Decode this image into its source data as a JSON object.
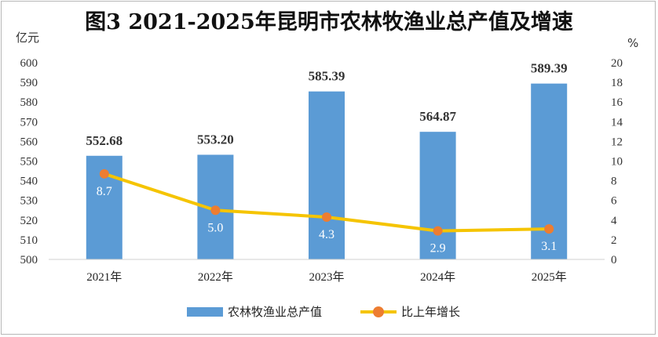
{
  "title": "图3 2021-2025年昆明市农林牧渔业总产值及增速",
  "chart_data": {
    "type": "bar",
    "categories": [
      "2021年",
      "2022年",
      "2023年",
      "2024年",
      "2025年"
    ],
    "series": [
      {
        "name": "农林牧渔业总产值",
        "type": "bar",
        "axis": "left",
        "values": [
          552.68,
          553.2,
          585.39,
          564.87,
          589.39
        ],
        "labels": [
          "552.68",
          "553.20",
          "585.39",
          "564.87",
          "589.39"
        ],
        "color": "#5b9bd5"
      },
      {
        "name": "比上年增长",
        "type": "line",
        "axis": "right",
        "values": [
          8.7,
          5.0,
          4.3,
          2.9,
          3.1
        ],
        "labels": [
          "8.7",
          "5.0",
          "4.3",
          "2.9",
          "3.1"
        ],
        "color": "#f5c400",
        "marker_color": "#ed7d31"
      }
    ],
    "y_left": {
      "unit": "亿元",
      "range": [
        500,
        600
      ],
      "ticks": [
        500,
        510,
        520,
        530,
        540,
        550,
        560,
        570,
        580,
        590,
        600
      ]
    },
    "y_right": {
      "unit": "%",
      "range": [
        0,
        20
      ],
      "ticks": [
        0,
        2,
        4,
        6,
        8,
        10,
        12,
        14,
        16,
        18,
        20
      ]
    },
    "grid": false,
    "legend_position": "bottom"
  }
}
